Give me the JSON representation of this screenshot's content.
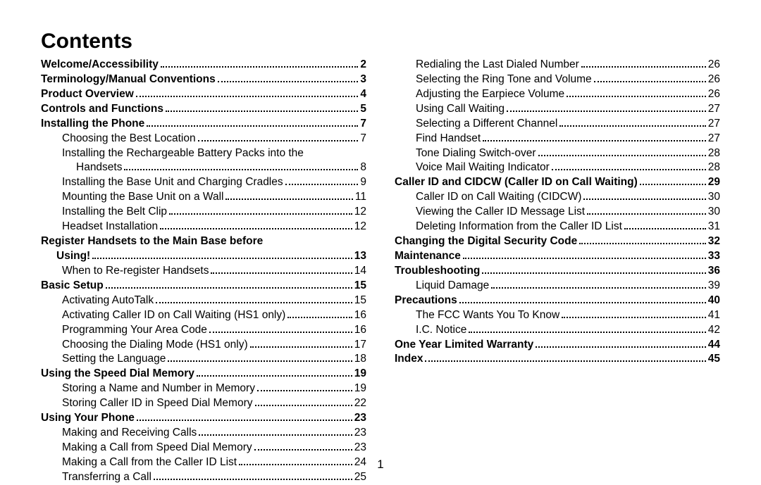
{
  "title": "Contents",
  "page_number": "1",
  "columns": [
    [
      {
        "label": "Welcome/Accessibility",
        "page": "2",
        "level": 0
      },
      {
        "label": "Terminology/Manual Conventions",
        "page": "3",
        "level": 0
      },
      {
        "label": "Product Overview",
        "page": "4",
        "level": 0
      },
      {
        "label": "Controls and Functions",
        "page": "5",
        "level": 0
      },
      {
        "label": "Installing the Phone",
        "page": "7",
        "level": 0
      },
      {
        "label": "Choosing the Best Location",
        "page": "7",
        "level": 1
      },
      {
        "type": "cont",
        "text": "Installing the Rechargeable Battery Packs into the",
        "level": 1,
        "bold": false
      },
      {
        "label": "Handsets",
        "page": "8",
        "level": 2,
        "continuation": true
      },
      {
        "label": "Installing the Base Unit and Charging Cradles",
        "page": "9",
        "level": 1
      },
      {
        "label": "Mounting the Base Unit on a Wall",
        "page": "11",
        "level": 1
      },
      {
        "label": "Installing the Belt Clip",
        "page": "12",
        "level": 1
      },
      {
        "label": "Headset Installation",
        "page": "12",
        "level": 1
      },
      {
        "type": "cont",
        "text": "Register Handsets to the Main Base before",
        "level": 0,
        "bold": true
      },
      {
        "label": "Using!",
        "page": "13",
        "level": 0,
        "indented_bold": true
      },
      {
        "label": "When to Re-register Handsets",
        "page": "14",
        "level": 1
      },
      {
        "label": "Basic Setup",
        "page": "15",
        "level": 0
      },
      {
        "label": "Activating AutoTalk",
        "page": "15",
        "level": 1
      },
      {
        "label": "Activating Caller ID on Call Waiting (HS1 only)",
        "page": "16",
        "level": 1
      },
      {
        "label": "Programming Your Area Code",
        "page": "16",
        "level": 1
      },
      {
        "label": "Choosing the Dialing Mode (HS1 only)",
        "page": "17",
        "level": 1
      },
      {
        "label": "Setting the Language",
        "page": "18",
        "level": 1
      },
      {
        "label": "Using the Speed Dial Memory",
        "page": "19",
        "level": 0
      },
      {
        "label": "Storing a Name and Number in Memory",
        "page": "19",
        "level": 1
      },
      {
        "label": "Storing Caller ID in Speed Dial Memory",
        "page": "22",
        "level": 1
      },
      {
        "label": "Using Your Phone",
        "page": "23",
        "level": 0
      },
      {
        "label": "Making and Receiving Calls",
        "page": "23",
        "level": 1
      },
      {
        "label": "Making a Call from Speed Dial Memory",
        "page": "23",
        "level": 1
      },
      {
        "label": "Making a Call from the Caller ID List",
        "page": "24",
        "level": 1
      },
      {
        "label": "Transferring a Call",
        "page": "25",
        "level": 1
      }
    ],
    [
      {
        "label": "Redialing the Last Dialed Number",
        "page": "26",
        "level": 1
      },
      {
        "label": "Selecting the Ring Tone and Volume",
        "page": "26",
        "level": 1
      },
      {
        "label": "Adjusting the Earpiece Volume",
        "page": "26",
        "level": 1
      },
      {
        "label": "Using Call Waiting",
        "page": "27",
        "level": 1
      },
      {
        "label": "Selecting a Different Channel",
        "page": "27",
        "level": 1
      },
      {
        "label": "Find Handset",
        "page": "27",
        "level": 1
      },
      {
        "label": "Tone Dialing Switch-over",
        "page": "28",
        "level": 1
      },
      {
        "label": "Voice Mail Waiting Indicator",
        "page": "28",
        "level": 1
      },
      {
        "label": "Caller ID and CIDCW (Caller ID on Call Waiting)",
        "page": "29",
        "level": 0
      },
      {
        "label": "Caller ID on Call Waiting (CIDCW)",
        "page": "30",
        "level": 1
      },
      {
        "label": "Viewing the Caller ID Message List",
        "page": "30",
        "level": 1
      },
      {
        "label": "Deleting Information from the Caller ID List",
        "page": "31",
        "level": 1
      },
      {
        "label": "Changing the Digital Security Code",
        "page": "32",
        "level": 0
      },
      {
        "label": "Maintenance",
        "page": "33",
        "level": 0
      },
      {
        "label": "Troubleshooting",
        "page": "36",
        "level": 0
      },
      {
        "label": "Liquid Damage",
        "page": "39",
        "level": 1
      },
      {
        "label": "Precautions",
        "page": "40",
        "level": 0
      },
      {
        "label": "The FCC Wants You To Know",
        "page": "41",
        "level": 1
      },
      {
        "label": "I.C. Notice",
        "page": "42",
        "level": 1
      },
      {
        "label": "One Year Limited Warranty",
        "page": "44",
        "level": 0
      },
      {
        "label": "Index",
        "page": "45",
        "level": 0
      }
    ]
  ]
}
